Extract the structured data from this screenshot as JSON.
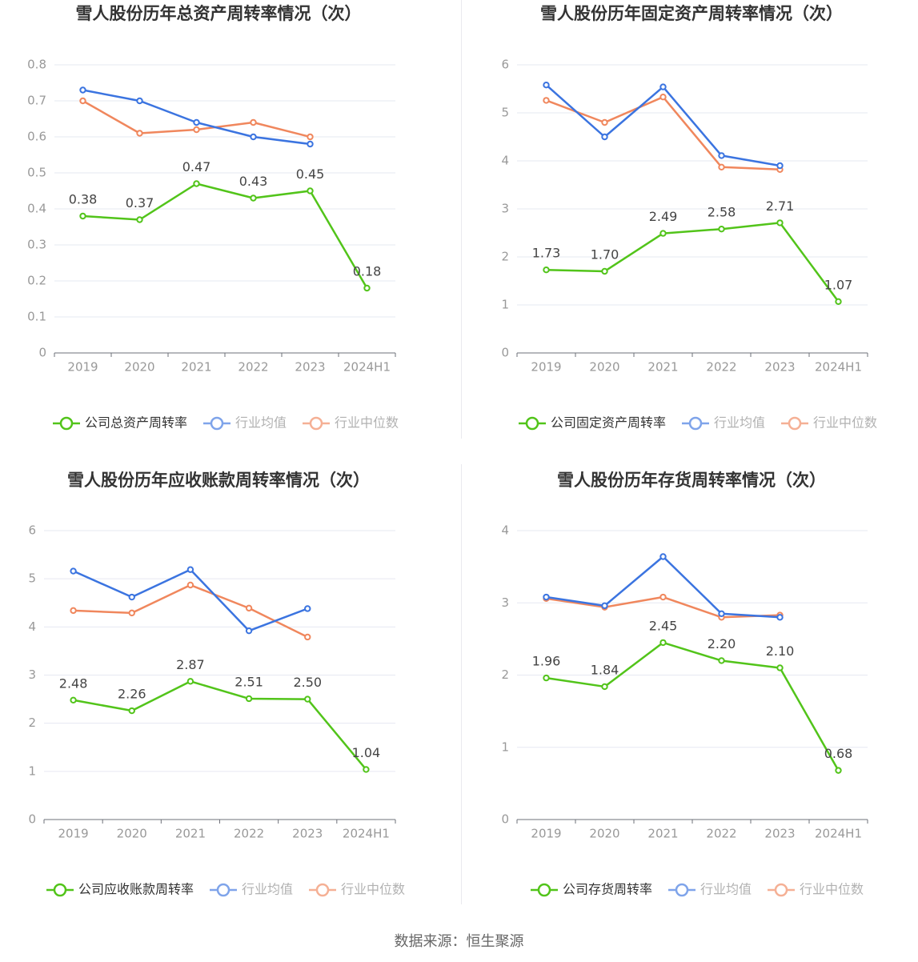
{
  "colors": {
    "company": "#52c41a",
    "avg": "#3b74e0",
    "median": "#f0875d",
    "grid": "#e6e8f2",
    "axis": "#999999",
    "tick": "#666666",
    "title": "#333333"
  },
  "source": "数据来源：恒生聚源",
  "chart_data": [
    {
      "type": "line",
      "title": "雪人股份历年总资产周转率情况（次）",
      "categories": [
        "2019",
        "2020",
        "2021",
        "2022",
        "2023",
        "2024H1"
      ],
      "ylim": [
        0,
        0.8
      ],
      "yticks": [
        0,
        0.1,
        0.2,
        0.3,
        0.4,
        0.5,
        0.6,
        0.7,
        0.8
      ],
      "ytick_labels": [
        "0",
        "0.1",
        "0.2",
        "0.3",
        "0.4",
        "0.5",
        "0.6",
        "0.7",
        "0.8"
      ],
      "legend_position": "bottom",
      "series": [
        {
          "name": "公司总资产周转率",
          "role": "company",
          "values": [
            0.38,
            0.37,
            0.47,
            0.43,
            0.45,
            0.18
          ],
          "labels": [
            "0.38",
            "0.37",
            "0.47",
            "0.43",
            "0.45",
            "0.18"
          ]
        },
        {
          "name": "行业均值",
          "role": "avg",
          "values": [
            0.73,
            0.7,
            0.64,
            0.6,
            0.58,
            null
          ]
        },
        {
          "name": "行业中位数",
          "role": "median",
          "values": [
            0.7,
            0.61,
            0.62,
            0.64,
            0.6,
            null
          ]
        }
      ]
    },
    {
      "type": "line",
      "title": "雪人股份历年固定资产周转率情况（次）",
      "categories": [
        "2019",
        "2020",
        "2021",
        "2022",
        "2023",
        "2024H1"
      ],
      "ylim": [
        0,
        6
      ],
      "yticks": [
        0,
        1,
        2,
        3,
        4,
        5,
        6
      ],
      "ytick_labels": [
        "0",
        "1",
        "2",
        "3",
        "4",
        "5",
        "6"
      ],
      "legend_position": "bottom",
      "series": [
        {
          "name": "公司固定资产周转率",
          "role": "company",
          "values": [
            1.73,
            1.7,
            2.49,
            2.58,
            2.71,
            1.07
          ],
          "labels": [
            "1.73",
            "1.70",
            "2.49",
            "2.58",
            "2.71",
            "1.07"
          ]
        },
        {
          "name": "行业均值",
          "role": "avg",
          "values": [
            5.58,
            4.5,
            5.54,
            4.11,
            3.9,
            null
          ]
        },
        {
          "name": "行业中位数",
          "role": "median",
          "values": [
            5.26,
            4.8,
            5.33,
            3.87,
            3.82,
            null
          ]
        }
      ]
    },
    {
      "type": "line",
      "title": "雪人股份历年应收账款周转率情况（次）",
      "categories": [
        "2019",
        "2020",
        "2021",
        "2022",
        "2023",
        "2024H1"
      ],
      "ylim": [
        0,
        6
      ],
      "yticks": [
        0,
        1,
        2,
        3,
        4,
        5,
        6
      ],
      "ytick_labels": [
        "0",
        "1",
        "2",
        "3",
        "4",
        "5",
        "6"
      ],
      "legend_position": "bottom",
      "series": [
        {
          "name": "公司应收账款周转率",
          "role": "company",
          "values": [
            2.48,
            2.26,
            2.87,
            2.51,
            2.5,
            1.04
          ],
          "labels": [
            "2.48",
            "2.26",
            "2.87",
            "2.51",
            "2.50",
            "1.04"
          ]
        },
        {
          "name": "行业均值",
          "role": "avg",
          "values": [
            5.16,
            4.62,
            5.19,
            3.92,
            4.38,
            null
          ]
        },
        {
          "name": "行业中位数",
          "role": "median",
          "values": [
            4.34,
            4.29,
            4.87,
            4.39,
            3.79,
            null
          ]
        }
      ]
    },
    {
      "type": "line",
      "title": "雪人股份历年存货周转率情况（次）",
      "categories": [
        "2019",
        "2020",
        "2021",
        "2022",
        "2023",
        "2024H1"
      ],
      "ylim": [
        0,
        4
      ],
      "yticks": [
        0,
        1,
        2,
        3,
        4
      ],
      "ytick_labels": [
        "0",
        "1",
        "2",
        "3",
        "4"
      ],
      "legend_position": "bottom",
      "series": [
        {
          "name": "公司存货周转率",
          "role": "company",
          "values": [
            1.96,
            1.84,
            2.45,
            2.2,
            2.1,
            0.68
          ],
          "labels": [
            "1.96",
            "1.84",
            "2.45",
            "2.20",
            "2.10",
            "0.68"
          ]
        },
        {
          "name": "行业均值",
          "role": "avg",
          "values": [
            3.08,
            2.96,
            3.64,
            2.85,
            2.8,
            null
          ]
        },
        {
          "name": "行业中位数",
          "role": "median",
          "values": [
            3.06,
            2.94,
            3.08,
            2.8,
            2.83,
            null
          ]
        }
      ]
    }
  ]
}
